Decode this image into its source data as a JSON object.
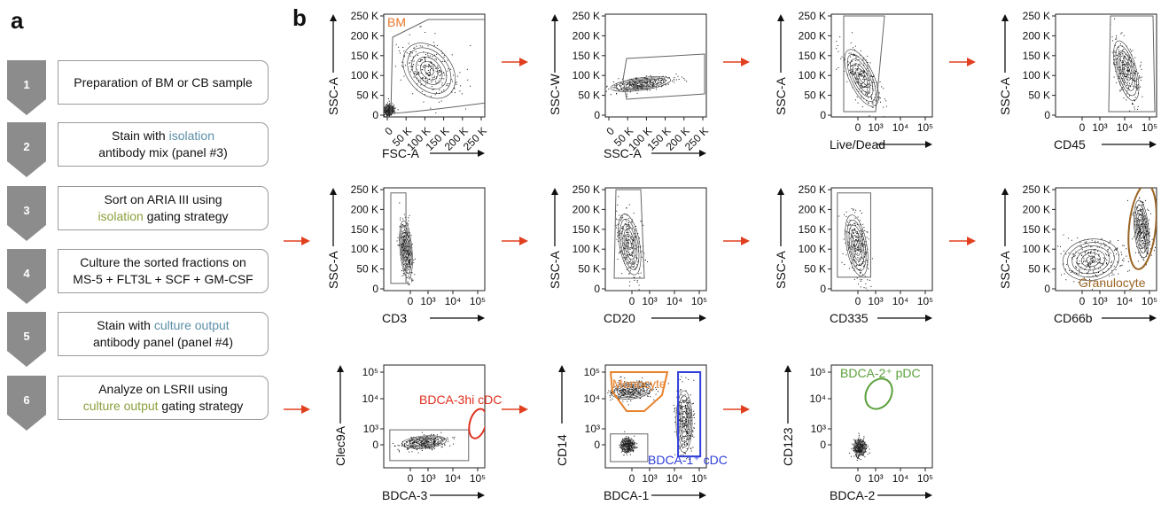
{
  "panel_a": {
    "label": "a",
    "steps": [
      {
        "num": "1",
        "text_before": "Preparation of BM or CB sample",
        "highlight": "",
        "text_after": "",
        "color": ""
      },
      {
        "num": "2",
        "text_before": "Stain with ",
        "highlight": "isolation",
        "text_after": "antibody mix (panel #3)",
        "color": "blue"
      },
      {
        "num": "3",
        "text_before": "Sort on ARIA III using",
        "highlight": "isolation",
        "text_after": " gating strategy",
        "color": "green"
      },
      {
        "num": "4",
        "text_before": "Culture the sorted fractions on",
        "highlight": "",
        "text_after": "MS-5 + FLT3L + SCF + GM-CSF",
        "color": ""
      },
      {
        "num": "5",
        "text_before": "Stain with ",
        "highlight": "culture output",
        "text_after": "antibody panel (panel #4)",
        "color": "blue"
      },
      {
        "num": "6",
        "text_before": "Analyze on LSRII using",
        "highlight": "culture output",
        "text_after": " gating strategy",
        "color": "green"
      }
    ]
  },
  "panel_b": {
    "label": "b",
    "colors": {
      "arrow": "#e0401f",
      "bm": "#e8762c",
      "granulocyte": "#9a6424",
      "cdc3": "#e0301e",
      "monocyte": "#e8822c",
      "cdc1": "#2f3fd8",
      "pdc": "#5aa03a"
    },
    "plots": [
      {
        "id": "bm",
        "ylabel": "SSC-A",
        "xlabel": "FSC-A",
        "yticks": [
          "250 K",
          "200 K",
          "150 K",
          "100 K",
          "50 K",
          "0"
        ],
        "xticks": [
          "0",
          "50 K",
          "100 K",
          "150 K",
          "200 K",
          "250 K"
        ],
        "gate_label": "BM"
      },
      {
        "id": "singlets",
        "ylabel": "SSC-W",
        "xlabel": "SSC-A",
        "yticks": [
          "250 K",
          "200 K",
          "150 K",
          "100 K",
          "50 K",
          "0"
        ],
        "xticks": [
          "0",
          "50 K",
          "100 K",
          "150 K",
          "200 K",
          "250 K"
        ],
        "gate_label": ""
      },
      {
        "id": "live",
        "ylabel": "SSC-A",
        "xlabel": "Live/Dead",
        "yticks": [
          "250 K",
          "200 K",
          "150 K",
          "100 K",
          "50 K",
          "0"
        ],
        "xticks": [
          "0",
          "10³",
          "10⁴",
          "10⁵"
        ],
        "gate_label": ""
      },
      {
        "id": "cd45",
        "ylabel": "SSC-A",
        "xlabel": "CD45",
        "yticks": [
          "250 K",
          "200 K",
          "150 K",
          "100 K",
          "50 K",
          "0"
        ],
        "xticks": [
          "0",
          "10³",
          "10⁴",
          "10⁵"
        ],
        "gate_label": ""
      },
      {
        "id": "cd3",
        "ylabel": "SSC-A",
        "xlabel": "CD3",
        "yticks": [
          "250 K",
          "200 K",
          "150 K",
          "100 K",
          "50 K",
          "0"
        ],
        "xticks": [
          "0",
          "10³",
          "10⁴",
          "10⁵"
        ],
        "gate_label": ""
      },
      {
        "id": "cd20",
        "ylabel": "SSC-A",
        "xlabel": "CD20",
        "yticks": [
          "250 K",
          "200 K",
          "150 K",
          "100 K",
          "50 K",
          "0"
        ],
        "xticks": [
          "0",
          "10³",
          "10⁴",
          "10⁵"
        ],
        "gate_label": ""
      },
      {
        "id": "cd335",
        "ylabel": "SSC-A",
        "xlabel": "CD335",
        "yticks": [
          "250 K",
          "200 K",
          "150 K",
          "100 K",
          "50 K",
          "0"
        ],
        "xticks": [
          "0",
          "10³",
          "10⁴",
          "10⁵"
        ],
        "gate_label": ""
      },
      {
        "id": "cd66b",
        "ylabel": "SSC-A",
        "xlabel": "CD66b",
        "yticks": [
          "250 K",
          "200 K",
          "150 K",
          "100 K",
          "50 K",
          "0"
        ],
        "xticks": [
          "0",
          "10³",
          "10⁴",
          "10⁵"
        ],
        "gate_label": "Granulocyte"
      },
      {
        "id": "bdca3",
        "ylabel": "Clec9A",
        "xlabel": "BDCA-3",
        "yticks": [
          "10⁵",
          "10⁴",
          "10³",
          "0"
        ],
        "xticks": [
          "0",
          "10³",
          "10⁴",
          "10⁵"
        ],
        "gate_label": "BDCA-3hi cDC"
      },
      {
        "id": "bdca1",
        "ylabel": "CD14",
        "xlabel": "BDCA-1",
        "yticks": [
          "10⁵",
          "10⁴",
          "10³",
          "0"
        ],
        "xticks": [
          "0",
          "10³",
          "10⁴",
          "10⁵"
        ],
        "gate_label": "Monocyte",
        "gate_label_2": "BDCA-1⁺ cDC"
      },
      {
        "id": "bdca2",
        "ylabel": "CD123",
        "xlabel": "BDCA-2",
        "yticks": [
          "10⁵",
          "10⁴",
          "10³",
          "0"
        ],
        "xticks": [
          "0",
          "10³",
          "10⁴",
          "10⁵"
        ],
        "gate_label": "BDCA-2⁺ pDC"
      }
    ]
  }
}
